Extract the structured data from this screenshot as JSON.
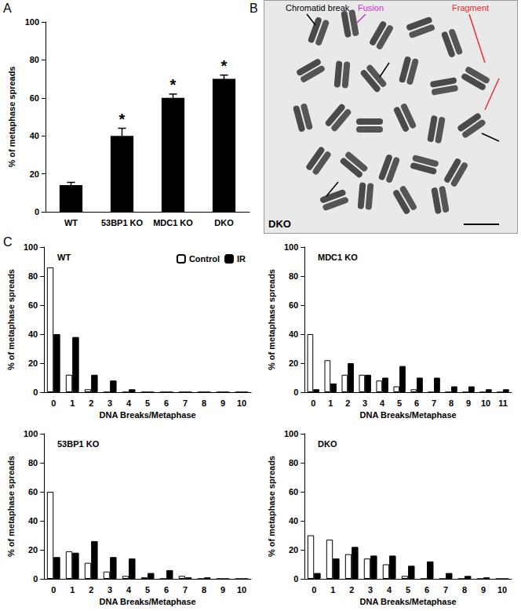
{
  "chart_data": [
    {
      "type": "bar",
      "panel_label": "A",
      "categories": [
        "WT",
        "53BP1 KO",
        "MDC1 KO",
        "DKO"
      ],
      "values": [
        14,
        40,
        60,
        70
      ],
      "errors": [
        1.5,
        4,
        2,
        2
      ],
      "annotations": [
        null,
        "*",
        "*",
        "*"
      ],
      "color": "#000000",
      "y_label": "% of metaphase spreads",
      "ylim": [
        0,
        100
      ],
      "yticks": [
        0,
        20,
        40,
        60,
        80,
        100
      ],
      "grid": false
    },
    {
      "type": "bar",
      "panel_label": "C",
      "title": "WT",
      "x_label": "DNA Breaks/Metaphase",
      "y_label": "% of metaphase spreads",
      "categories": [
        0,
        1,
        2,
        3,
        4,
        5,
        6,
        7,
        8,
        9,
        10
      ],
      "series": [
        {
          "name": "Control",
          "color": "#ffffff",
          "values": [
            86,
            12,
            2,
            0,
            0,
            0,
            0,
            0,
            0,
            0,
            0
          ]
        },
        {
          "name": "IR",
          "color": "#000000",
          "values": [
            40,
            38,
            12,
            8,
            2,
            0,
            0,
            0,
            0,
            0,
            0
          ]
        }
      ],
      "ylim": [
        0,
        100
      ],
      "yticks": [
        0,
        20,
        40,
        60,
        80,
        100
      ],
      "grid": false,
      "legend": "upper right"
    },
    {
      "type": "bar",
      "title": "MDC1 KO",
      "x_label": "DNA Breaks/Metaphase",
      "y_label": "% of metaphase spreads",
      "categories": [
        0,
        1,
        2,
        3,
        4,
        5,
        6,
        7,
        8,
        9,
        10,
        11
      ],
      "series": [
        {
          "name": "Control",
          "color": "#ffffff",
          "values": [
            40,
            22,
            12,
            12,
            8,
            4,
            2,
            0,
            0,
            0,
            0,
            0
          ]
        },
        {
          "name": "IR",
          "color": "#000000",
          "values": [
            2,
            6,
            20,
            12,
            10,
            18,
            10,
            10,
            4,
            4,
            2,
            2
          ]
        }
      ],
      "ylim": [
        0,
        100
      ],
      "yticks": [
        0,
        20,
        40,
        60,
        80,
        100
      ],
      "grid": false
    },
    {
      "type": "bar",
      "title": "53BP1 KO",
      "x_label": "DNA Breaks/Metaphase",
      "y_label": "% of metaphase spreads",
      "categories": [
        0,
        1,
        2,
        3,
        4,
        5,
        6,
        7,
        8,
        9,
        10
      ],
      "series": [
        {
          "name": "Control",
          "color": "#ffffff",
          "values": [
            60,
            19,
            11,
            5,
            2,
            1,
            0,
            2,
            0,
            0,
            0
          ]
        },
        {
          "name": "IR",
          "color": "#000000",
          "values": [
            15,
            18,
            26,
            15,
            14,
            4,
            6,
            1,
            1,
            0,
            0
          ]
        }
      ],
      "ylim": [
        0,
        100
      ],
      "yticks": [
        0,
        20,
        40,
        60,
        80,
        100
      ],
      "grid": false
    },
    {
      "type": "bar",
      "title": "DKO",
      "x_label": "DNA Breaks/Metaphase",
      "y_label": "% of metaphase spreads",
      "categories": [
        0,
        1,
        2,
        3,
        4,
        5,
        6,
        7,
        8,
        9,
        10
      ],
      "series": [
        {
          "name": "Control",
          "color": "#ffffff",
          "values": [
            30,
            27,
            17,
            14,
            10,
            2,
            0,
            0,
            0,
            0,
            0
          ]
        },
        {
          "name": "IR",
          "color": "#000000",
          "values": [
            4,
            14,
            22,
            16,
            16,
            9,
            12,
            4,
            2,
            1,
            0
          ]
        }
      ],
      "ylim": [
        0,
        100
      ],
      "yticks": [
        0,
        20,
        40,
        60,
        80,
        100
      ],
      "grid": false
    }
  ],
  "image_panel": {
    "panel_label": "B",
    "title": "DKO",
    "annotations": [
      {
        "text": "Chromatid break",
        "color": "#000000"
      },
      {
        "text": "Fusion",
        "color": "#cc33cc"
      },
      {
        "text": "Fragment",
        "color": "#e03030"
      }
    ]
  }
}
